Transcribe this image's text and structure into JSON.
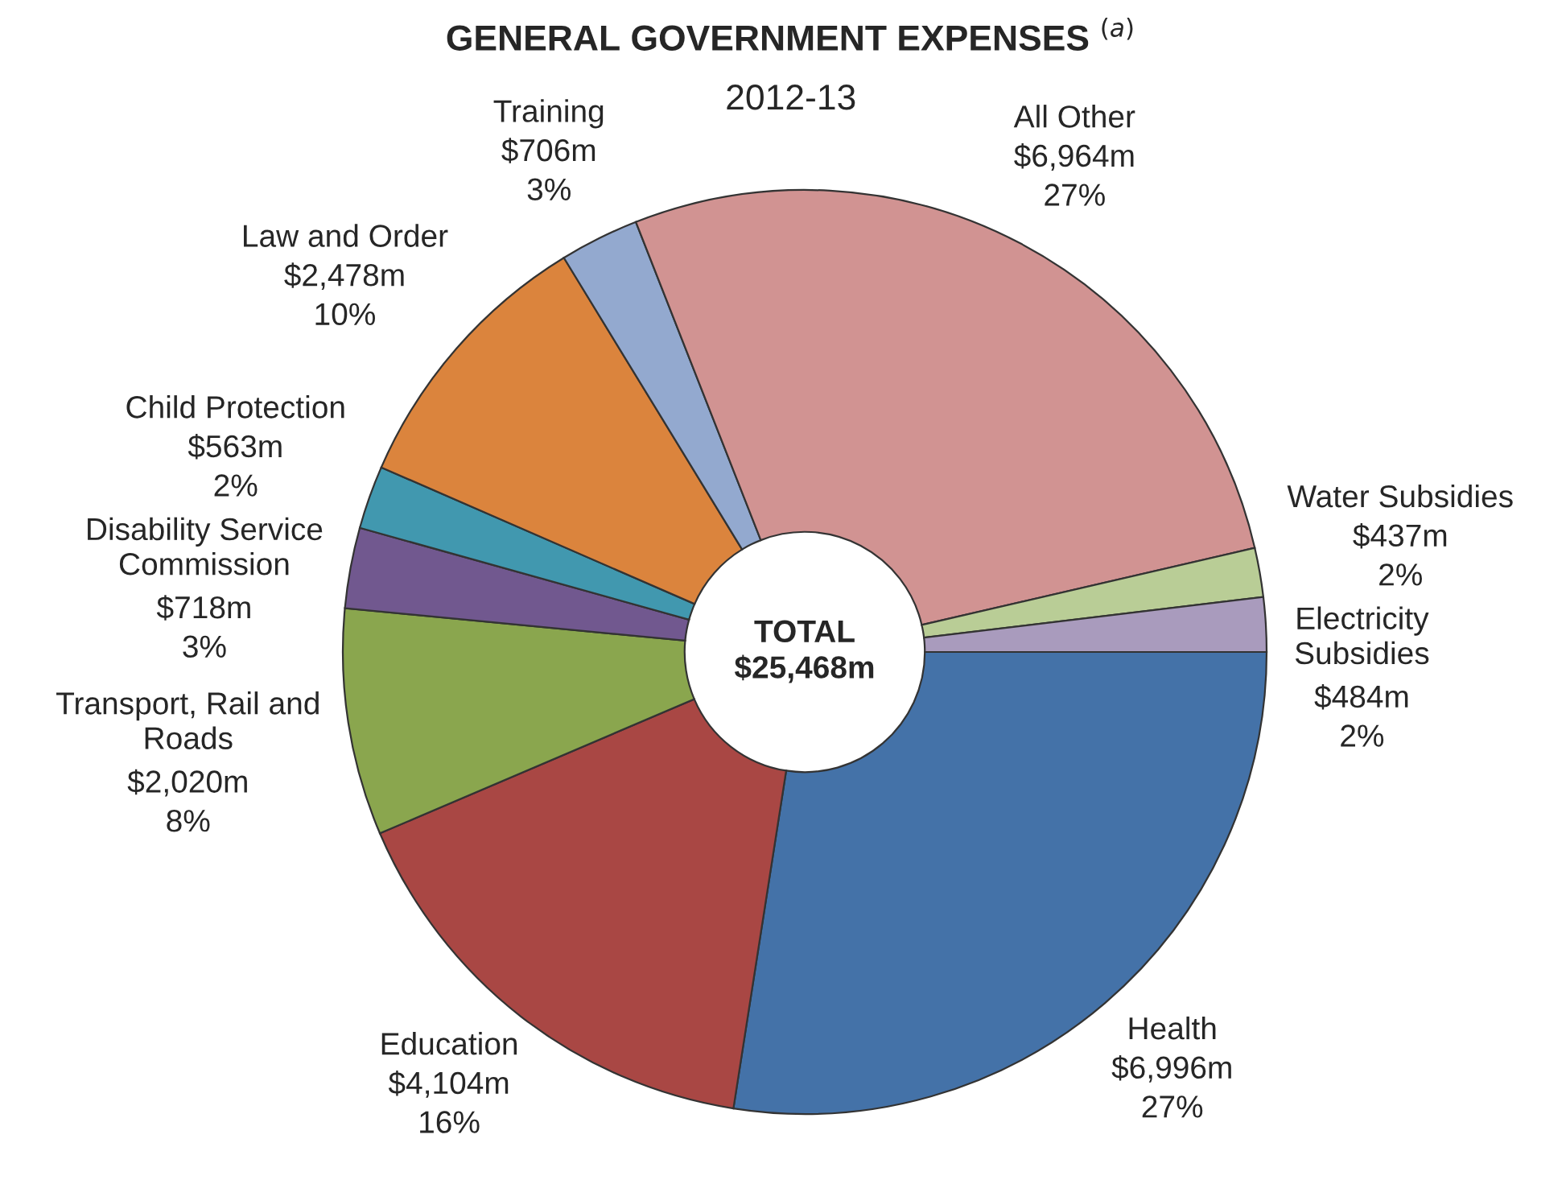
{
  "chart_data": {
    "type": "donut",
    "title": "GENERAL GOVERNMENT EXPENSES $^{(a)}$",
    "subtitle": "2012-13",
    "categories": [
      "Health",
      "Education",
      "Transport, Rail and\nRoads",
      "Disability Service\nCommission",
      "Child Protection",
      "Law and Order",
      "Training",
      "All Other",
      "Water Subsidies",
      "Electricity\nSubsidies"
    ],
    "values": [
      6996,
      4104,
      2020,
      718,
      563,
      2478,
      706,
      6964,
      437,
      484
    ],
    "value_labels": [
      "$6,996m",
      "$4,104m",
      "$2,020m",
      "$718m",
      "$563m",
      "$2,478m",
      "$706m",
      "$6,964m",
      "$437m",
      "$484m"
    ],
    "colors": [
      "#4472a8",
      "#a94744",
      "#8aa64e",
      "#71588f",
      "#4198af",
      "#db843d",
      "#93a9cf",
      "#d19392",
      "#b9cd96",
      "#a99bbd"
    ],
    "annotations": [
      "TOTAL\n$25,468m",
      {
        "text": "27%",
        "x": "Health"
      },
      {
        "text": "16%",
        "x": "Education"
      },
      {
        "text": "8%",
        "x": "Transport, Rail and\nRoads"
      },
      {
        "text": "3%",
        "x": "Disability Service\nCommission"
      },
      {
        "text": "2%",
        "x": "Child Protection"
      },
      {
        "text": "10%",
        "x": "Law and Order"
      },
      {
        "text": "3%",
        "x": "Training"
      },
      {
        "text": "27%",
        "x": "All Other"
      },
      {
        "text": "2%",
        "x": "Water Subsidies"
      },
      {
        "text": "2%",
        "x": "Electricity\nSubsidies"
      }
    ]
  }
}
